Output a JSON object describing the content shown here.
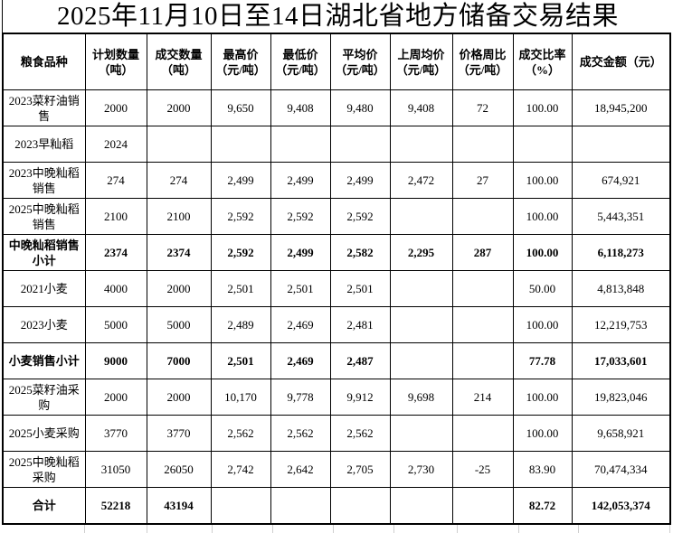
{
  "title": "2025年11月10日至14日湖北省地方储备交易结果",
  "table": {
    "columns": [
      {
        "line1": "粮食品种",
        "line2": ""
      },
      {
        "line1": "计划数量",
        "line2": "（吨）"
      },
      {
        "line1": "成交数量",
        "line2": "（吨）"
      },
      {
        "line1": "最高价",
        "line2": "（元/吨）"
      },
      {
        "line1": "最低价",
        "line2": "（元/吨）"
      },
      {
        "line1": "平均价",
        "line2": "（元/吨）"
      },
      {
        "line1": "上周均价",
        "line2": "（元/吨）"
      },
      {
        "line1": "价格周比",
        "line2": "（元/吨）"
      },
      {
        "line1": "成交比率",
        "line2": "（%）"
      },
      {
        "line1": "成交金额（元）",
        "line2": ""
      }
    ],
    "rows": [
      {
        "label": "2023菜籽油销售",
        "bold": false,
        "values": [
          "2000",
          "2000",
          "9,650",
          "9,408",
          "9,480",
          "9,408",
          "72",
          "100.00",
          "18,945,200"
        ]
      },
      {
        "label": "2023早籼稻",
        "bold": false,
        "values": [
          "2024",
          "",
          "",
          "",
          "",
          "",
          "",
          "",
          ""
        ]
      },
      {
        "label": "2023中晚籼稻销售",
        "bold": false,
        "values": [
          "274",
          "274",
          "2,499",
          "2,499",
          "2,499",
          "2,472",
          "27",
          "100.00",
          "674,921"
        ]
      },
      {
        "label": "2025中晚籼稻销售",
        "bold": false,
        "values": [
          "2100",
          "2100",
          "2,592",
          "2,592",
          "2,592",
          "",
          "",
          "100.00",
          "5,443,351"
        ]
      },
      {
        "label": "中晚籼稻销售小计",
        "bold": true,
        "values": [
          "2374",
          "2374",
          "2,592",
          "2,499",
          "2,582",
          "2,295",
          "287",
          "100.00",
          "6,118,273"
        ]
      },
      {
        "label": "2021小麦",
        "bold": false,
        "values": [
          "4000",
          "2000",
          "2,501",
          "2,501",
          "2,501",
          "",
          "",
          "50.00",
          "4,813,848"
        ]
      },
      {
        "label": "2023小麦",
        "bold": false,
        "values": [
          "5000",
          "5000",
          "2,489",
          "2,469",
          "2,481",
          "",
          "",
          "100.00",
          "12,219,753"
        ]
      },
      {
        "label": "小麦销售小计",
        "bold": true,
        "values": [
          "9000",
          "7000",
          "2,501",
          "2,469",
          "2,487",
          "",
          "",
          "77.78",
          "17,033,601"
        ]
      },
      {
        "label": "2025菜籽油采购",
        "bold": false,
        "values": [
          "2000",
          "2000",
          "10,170",
          "9,778",
          "9,912",
          "9,698",
          "214",
          "100.00",
          "19,823,046"
        ]
      },
      {
        "label": "2025小麦采购",
        "bold": false,
        "values": [
          "3770",
          "3770",
          "2,562",
          "2,562",
          "2,562",
          "",
          "",
          "100.00",
          "9,658,921"
        ]
      },
      {
        "label": "2025中晚籼稻采购",
        "bold": false,
        "values": [
          "31050",
          "26050",
          "2,742",
          "2,642",
          "2,705",
          "2,730",
          "-25",
          "83.90",
          "70,474,334"
        ]
      },
      {
        "label": "合计",
        "bold": true,
        "values": [
          "52218",
          "43194",
          "",
          "",
          "",
          "",
          "",
          "82.72",
          "142,053,374"
        ]
      }
    ]
  }
}
